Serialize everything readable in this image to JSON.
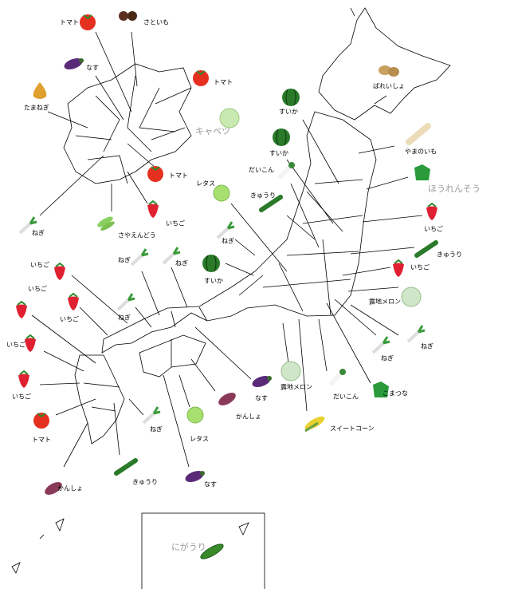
{
  "labels": [
    "トマト",
    "さといも",
    "なす",
    "たまねぎ",
    "トマト",
    "キャベツ",
    "トマト",
    "いちご",
    "さやえんどう",
    "ねぎ",
    "ばれいしょ",
    "すいか",
    "すいか",
    "やまのいも",
    "ほうれんそう",
    "だいこん",
    "レタス",
    "きゅうり",
    "いちご",
    "ねぎ",
    "きゅうり",
    "いちご",
    "ねぎ",
    "ねぎ",
    "すいか",
    "露地メロン",
    "いちご",
    "いちご",
    "いちご",
    "ねぎ",
    "いちご",
    "いちご",
    "トマト",
    "ねぎ",
    "ねぎ",
    "なす",
    "露地メロン",
    "だいこん",
    "こまつな",
    "かんしょ",
    "レタス",
    "ねぎ",
    "スイートコーン",
    "きゅうり",
    "なす",
    "かんしょ",
    "にがうり"
  ]
}
